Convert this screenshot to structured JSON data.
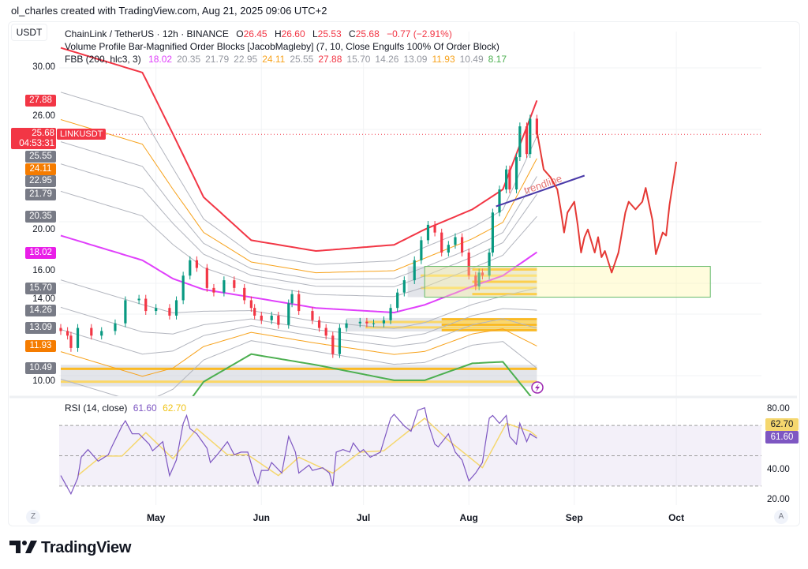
{
  "credit": "ol_charles created with TradingView.com, Aug 21, 2025 09:06 UTC+2",
  "currency": "USDT",
  "symbol_legend": {
    "title": "ChainLink / TetherUS · 12h · BINANCE",
    "o_label": "O",
    "o": "26.45",
    "h_label": "H",
    "h": "26.60",
    "l_label": "L",
    "l": "25.53",
    "c_label": "C",
    "c": "25.68",
    "change": "−0.77 (−2.91%)"
  },
  "indicator_vp": "Volume Profile Bar-Magnified Order Blocks [JacobMagleby] (7, 10, Close Engulfs 100% Of Order Block)",
  "indicator_fbb": {
    "title": "FBB (200, hlc3, 3)",
    "values": [
      {
        "v": "18.02",
        "color": "#e040fb"
      },
      {
        "v": "20.35",
        "color": "#9598a1"
      },
      {
        "v": "21.79",
        "color": "#9598a1"
      },
      {
        "v": "22.95",
        "color": "#9598a1"
      },
      {
        "v": "24.11",
        "color": "#f7a21b"
      },
      {
        "v": "25.55",
        "color": "#9598a1"
      },
      {
        "v": "27.88",
        "color": "#f23645"
      },
      {
        "v": "15.70",
        "color": "#9598a1"
      },
      {
        "v": "14.26",
        "color": "#9598a1"
      },
      {
        "v": "13.09",
        "color": "#9598a1"
      },
      {
        "v": "11.93",
        "color": "#f7a21b"
      },
      {
        "v": "10.49",
        "color": "#9598a1"
      },
      {
        "v": "8.17",
        "color": "#4caf50"
      }
    ]
  },
  "price_axis": {
    "ticks": [
      "30.00",
      "26.00",
      "20.00",
      "16.00",
      "14.00",
      "10.00"
    ],
    "labels": [
      {
        "v": "27.88",
        "bg": "#f23645"
      },
      {
        "v": "25.55",
        "bg": "#787b86"
      },
      {
        "v": "24.11",
        "bg": "#f57c00"
      },
      {
        "v": "22.95",
        "bg": "#787b86"
      },
      {
        "v": "21.79",
        "bg": "#787b86"
      },
      {
        "v": "20.35",
        "bg": "#787b86"
      },
      {
        "v": "18.02",
        "bg": "#e91ee8"
      },
      {
        "v": "15.70",
        "bg": "#787b86"
      },
      {
        "v": "14.26",
        "bg": "#787b86"
      },
      {
        "v": "13.09",
        "bg": "#787b86"
      },
      {
        "v": "11.93",
        "bg": "#f57c00"
      },
      {
        "v": "10.49",
        "bg": "#787b86"
      }
    ],
    "last_price": "25.68",
    "countdown": "04:53:31",
    "symbol_tag": "LINKUSDT"
  },
  "time_axis": {
    "labels": [
      {
        "t": "May",
        "date": "2025-05-01"
      },
      {
        "t": "Jun",
        "date": "2025-06-01"
      },
      {
        "t": "Jul",
        "date": "2025-07-01"
      },
      {
        "t": "Aug",
        "date": "2025-08-01"
      },
      {
        "t": "Sep",
        "date": "2025-09-01"
      },
      {
        "t": "Oct",
        "date": "2025-10-01"
      }
    ],
    "left_button": "Z",
    "right_button": "A"
  },
  "rsi": {
    "title": "RSI (14, close)",
    "value": "61.60",
    "ma_value": "62.70",
    "ticks": [
      "80.00",
      "40.00",
      "20.00"
    ],
    "colors": {
      "rsi": "#7e57c2",
      "ma": "#f5d76e"
    }
  },
  "drawing": {
    "trendline_label": "trendline"
  },
  "logo": "TradingView",
  "colors": {
    "up": "#089981",
    "down": "#f23645",
    "upper": "#f23645",
    "fib618": "#f7a21b",
    "basis": "#e040fb",
    "lower": "#4caf50",
    "band": "#b2b5be",
    "trendline": "#4a3aa8",
    "forecast": "#e53935"
  },
  "chart_data": [
    {
      "type": "line",
      "title": "ChainLink / TetherUS · 12h · BINANCE",
      "ylim": [
        8,
        32
      ],
      "scale": "linear",
      "grid": true,
      "closes": [
        [
          "2025-04-03",
          12.9
        ],
        [
          "2025-04-05",
          12.6
        ],
        [
          "2025-04-06",
          11.8
        ],
        [
          "2025-04-08",
          13.1
        ],
        [
          "2025-04-12",
          12.6
        ],
        [
          "2025-04-15",
          12.9
        ],
        [
          "2025-04-19",
          13.4
        ],
        [
          "2025-04-22",
          14.9
        ],
        [
          "2025-04-26",
          15.0
        ],
        [
          "2025-04-28",
          14.2
        ],
        [
          "2025-05-01",
          14.4
        ],
        [
          "2025-05-05",
          13.9
        ],
        [
          "2025-05-07",
          14.9
        ],
        [
          "2025-05-09",
          16.5
        ],
        [
          "2025-05-11",
          17.5
        ],
        [
          "2025-05-13",
          17.0
        ],
        [
          "2025-05-16",
          15.7
        ],
        [
          "2025-05-18",
          15.4
        ],
        [
          "2025-05-21",
          16.2
        ],
        [
          "2025-05-24",
          15.7
        ],
        [
          "2025-05-27",
          14.9
        ],
        [
          "2025-05-29",
          14.4
        ],
        [
          "2025-05-30",
          13.9
        ],
        [
          "2025-06-01",
          13.6
        ],
        [
          "2025-06-04",
          13.9
        ],
        [
          "2025-06-06",
          13.3
        ],
        [
          "2025-06-09",
          14.7
        ],
        [
          "2025-06-10",
          15.3
        ],
        [
          "2025-06-12",
          14.2
        ],
        [
          "2025-06-16",
          13.6
        ],
        [
          "2025-06-18",
          13.1
        ],
        [
          "2025-06-20",
          12.6
        ],
        [
          "2025-06-22",
          11.4
        ],
        [
          "2025-06-24",
          13.1
        ],
        [
          "2025-06-26",
          13.4
        ],
        [
          "2025-06-30",
          13.5
        ],
        [
          "2025-07-02",
          13.4
        ],
        [
          "2025-07-04",
          13.4
        ],
        [
          "2025-07-07",
          13.6
        ],
        [
          "2025-07-09",
          14.4
        ],
        [
          "2025-07-11",
          15.4
        ],
        [
          "2025-07-13",
          16.2
        ],
        [
          "2025-07-16",
          17.5
        ],
        [
          "2025-07-18",
          18.8
        ],
        [
          "2025-07-20",
          19.8
        ],
        [
          "2025-07-22",
          19.3
        ],
        [
          "2025-07-24",
          18.0
        ],
        [
          "2025-07-26",
          18.5
        ],
        [
          "2025-07-28",
          19.0
        ],
        [
          "2025-07-30",
          18.0
        ],
        [
          "2025-08-01",
          16.5
        ],
        [
          "2025-08-03",
          15.8
        ],
        [
          "2025-08-04",
          16.7
        ],
        [
          "2025-08-05",
          16.5
        ],
        [
          "2025-08-07",
          18.0
        ],
        [
          "2025-08-08",
          20.6
        ],
        [
          "2025-08-10",
          22.1
        ],
        [
          "2025-08-12",
          23.4
        ],
        [
          "2025-08-13",
          22.1
        ],
        [
          "2025-08-15",
          24.2
        ],
        [
          "2025-08-16",
          26.2
        ],
        [
          "2025-08-18",
          24.4
        ],
        [
          "2025-08-19",
          26.7
        ],
        [
          "2025-08-21",
          25.68
        ]
      ],
      "fbb": {
        "multipliers": [
          1,
          0.764,
          0.618,
          0.5,
          0.382,
          0.236,
          0,
          -0.236,
          -0.382,
          -0.5,
          -0.618,
          -0.764,
          -1
        ],
        "basis": [
          [
            "2025-04-03",
            19.1
          ],
          [
            "2025-04-27",
            17.5
          ],
          [
            "2025-05-06",
            16.3
          ],
          [
            "2025-05-15",
            15.6
          ],
          [
            "2025-05-29",
            15.1
          ],
          [
            "2025-06-17",
            14.4
          ],
          [
            "2025-07-10",
            14.1
          ],
          [
            "2025-07-19",
            14.6
          ],
          [
            "2025-08-02",
            15.8
          ],
          [
            "2025-08-11",
            16.5
          ],
          [
            "2025-08-21",
            18.02
          ]
        ],
        "deviation": [
          [
            "2025-04-03",
            12.2
          ],
          [
            "2025-04-27",
            12.2
          ],
          [
            "2025-05-06",
            9.4
          ],
          [
            "2025-05-15",
            6.0
          ],
          [
            "2025-05-29",
            3.7
          ],
          [
            "2025-06-17",
            3.7
          ],
          [
            "2025-07-10",
            4.4
          ],
          [
            "2025-07-19",
            4.9
          ],
          [
            "2025-08-02",
            5.0
          ],
          [
            "2025-08-11",
            5.6
          ],
          [
            "2025-08-21",
            9.86
          ]
        ]
      },
      "order_blocks": [
        {
          "from": "2025-04-03",
          "to": "2025-08-21",
          "top": 10.7,
          "bottom": 9.3
        },
        {
          "from": "2025-06-26",
          "to": "2025-08-21",
          "top": 13.75,
          "bottom": 12.87
        },
        {
          "from": "2025-07-14",
          "to": "2025-08-21",
          "top": 17.1,
          "bottom": 15.1
        }
      ],
      "target_zone": {
        "from": "2025-07-19",
        "to": "2025-10-11",
        "top": 17.1,
        "bottom": 15.1
      },
      "trendline": [
        [
          "2025-08-09",
          21.0
        ],
        [
          "2025-09-04",
          23.0
        ]
      ],
      "forecast_path": [
        [
          "2025-08-21",
          25.9
        ],
        [
          "2025-08-23",
          23.4
        ],
        [
          "2025-08-25",
          22.9
        ],
        [
          "2025-08-27",
          22.1
        ],
        [
          "2025-08-28",
          20.8
        ],
        [
          "2025-08-29",
          19.3
        ],
        [
          "2025-08-30",
          20.6
        ],
        [
          "2025-09-01",
          21.3
        ],
        [
          "2025-09-02",
          19.8
        ],
        [
          "2025-09-03",
          18.0
        ],
        [
          "2025-09-04",
          19.0
        ],
        [
          "2025-09-05",
          19.5
        ],
        [
          "2025-09-07",
          18.0
        ],
        [
          "2025-09-08",
          19.0
        ],
        [
          "2025-09-09",
          17.7
        ],
        [
          "2025-09-10",
          18.1
        ],
        [
          "2025-09-12",
          16.7
        ],
        [
          "2025-09-14",
          18.0
        ],
        [
          "2025-09-16",
          20.6
        ],
        [
          "2025-09-17",
          21.3
        ],
        [
          "2025-09-19",
          20.8
        ],
        [
          "2025-09-21",
          21.3
        ],
        [
          "2025-09-22",
          22.2
        ],
        [
          "2025-09-24",
          20.1
        ],
        [
          "2025-09-25",
          17.9
        ],
        [
          "2025-09-27",
          19.3
        ],
        [
          "2025-09-28",
          19.1
        ],
        [
          "2025-09-29",
          21.1
        ],
        [
          "2025-10-01",
          23.9
        ]
      ]
    },
    {
      "type": "line",
      "title": "RSI (14, close)",
      "ylim": [
        18,
        85
      ],
      "levels": [
        70,
        50,
        30
      ],
      "series": [
        {
          "name": "RSI",
          "values": [
            [
              "2025-04-03",
              36.9
            ],
            [
              "2025-04-06",
              24.8
            ],
            [
              "2025-04-08",
              35.2
            ],
            [
              "2025-04-09",
              49
            ],
            [
              "2025-04-11",
              54.1
            ],
            [
              "2025-04-14",
              46.4
            ],
            [
              "2025-04-17",
              50.7
            ],
            [
              "2025-04-18",
              55.9
            ],
            [
              "2025-04-21",
              69.7
            ],
            [
              "2025-04-22",
              73.1
            ],
            [
              "2025-04-24",
              64.5
            ],
            [
              "2025-04-26",
              64.5
            ],
            [
              "2025-04-29",
              57.6
            ],
            [
              "2025-04-30",
              53.3
            ],
            [
              "2025-05-03",
              59.3
            ],
            [
              "2025-05-05",
              36.9
            ],
            [
              "2025-05-07",
              47.2
            ],
            [
              "2025-05-09",
              71.4
            ],
            [
              "2025-05-10",
              76.6
            ],
            [
              "2025-05-11",
              67.9
            ],
            [
              "2025-05-13",
              64.5
            ],
            [
              "2025-05-16",
              55
            ],
            [
              "2025-05-17",
              45.5
            ],
            [
              "2025-05-19",
              50.7
            ],
            [
              "2025-05-22",
              59.3
            ],
            [
              "2025-05-24",
              50.7
            ],
            [
              "2025-05-26",
              52.4
            ],
            [
              "2025-05-28",
              52.4
            ],
            [
              "2025-05-30",
              36.9
            ],
            [
              "2025-05-31",
              31.7
            ],
            [
              "2025-06-01",
              40.3
            ],
            [
              "2025-06-03",
              40.3
            ],
            [
              "2025-06-04",
              45.5
            ],
            [
              "2025-06-07",
              38.6
            ],
            [
              "2025-06-09",
              62.8
            ],
            [
              "2025-06-11",
              52.4
            ],
            [
              "2025-06-12",
              38.6
            ],
            [
              "2025-06-15",
              43.8
            ],
            [
              "2025-06-16",
              40.3
            ],
            [
              "2025-06-19",
              42.1
            ],
            [
              "2025-06-21",
              38.6
            ],
            [
              "2025-06-22",
              30
            ],
            [
              "2025-06-23",
              52.4
            ],
            [
              "2025-06-25",
              54.1
            ],
            [
              "2025-06-27",
              52.4
            ],
            [
              "2025-06-28",
              58.4
            ],
            [
              "2025-06-30",
              52.4
            ],
            [
              "2025-07-01",
              54.1
            ],
            [
              "2025-07-03",
              49
            ],
            [
              "2025-07-06",
              52.4
            ],
            [
              "2025-07-09",
              74.8
            ],
            [
              "2025-07-10",
              77.4
            ],
            [
              "2025-07-13",
              69.7
            ],
            [
              "2025-07-15",
              66.2
            ],
            [
              "2025-07-17",
              80
            ],
            [
              "2025-07-19",
              81.7
            ],
            [
              "2025-07-20",
              71.4
            ],
            [
              "2025-07-22",
              57.6
            ],
            [
              "2025-07-23",
              55.9
            ],
            [
              "2025-07-26",
              64.5
            ],
            [
              "2025-07-28",
              52.4
            ],
            [
              "2025-07-30",
              47.2
            ],
            [
              "2025-07-31",
              40.3
            ],
            [
              "2025-08-01",
              33.4
            ],
            [
              "2025-08-03",
              38.6
            ],
            [
              "2025-08-05",
              45.5
            ],
            [
              "2025-08-07",
              74.8
            ],
            [
              "2025-08-08",
              76.6
            ],
            [
              "2025-08-10",
              71.4
            ],
            [
              "2025-08-12",
              76.6
            ],
            [
              "2025-08-13",
              62.8
            ],
            [
              "2025-08-15",
              57.6
            ],
            [
              "2025-08-16",
              71.4
            ],
            [
              "2025-08-18",
              59.3
            ],
            [
              "2025-08-19",
              64.5
            ],
            [
              "2025-08-21",
              61.6
            ]
          ]
        },
        {
          "name": "RSI-based MA",
          "values": [
            [
              "2025-04-08",
              36.9
            ],
            [
              "2025-04-15",
              49.8
            ],
            [
              "2025-04-21",
              49.8
            ],
            [
              "2025-04-28",
              65.3
            ],
            [
              "2025-05-06",
              48.1
            ],
            [
              "2025-05-13",
              67.9
            ],
            [
              "2025-05-22",
              50.7
            ],
            [
              "2025-05-28",
              50.7
            ],
            [
              "2025-06-06",
              36.9
            ],
            [
              "2025-06-12",
              49
            ],
            [
              "2025-06-22",
              38.6
            ],
            [
              "2025-06-30",
              52.4
            ],
            [
              "2025-07-07",
              53.3
            ],
            [
              "2025-07-19",
              74.8
            ],
            [
              "2025-07-26",
              60.2
            ],
            [
              "2025-08-05",
              42.1
            ],
            [
              "2025-08-12",
              71.4
            ],
            [
              "2025-08-19",
              66.2
            ],
            [
              "2025-08-21",
              62.7
            ]
          ]
        }
      ]
    }
  ]
}
